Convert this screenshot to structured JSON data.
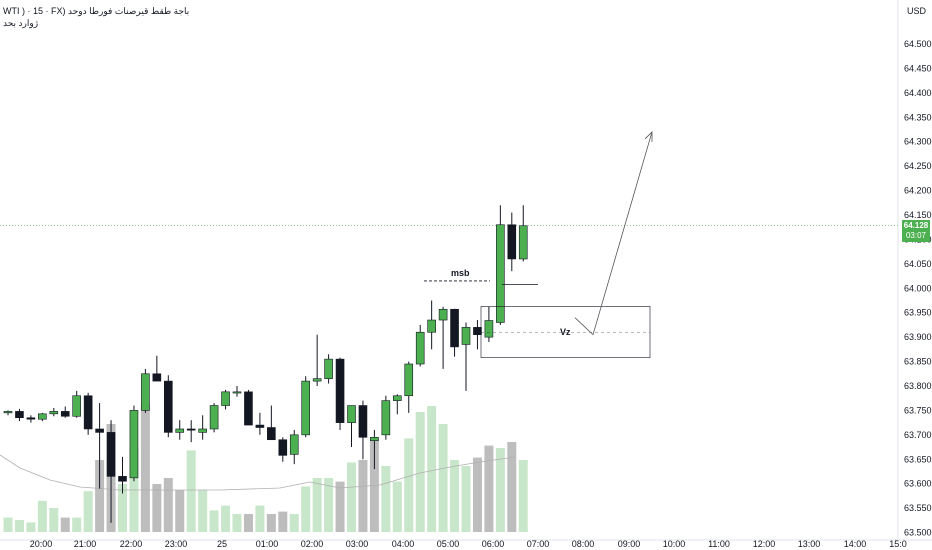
{
  "header": {
    "symbol_line": "WTI ) · 15 · FX) باجة طقط قيرصنات فورطا دوحد",
    "sub_line": "ژوارد بحد",
    "currency": "USD"
  },
  "last_price": {
    "value": "64.128",
    "countdown": "03:07"
  },
  "colors": {
    "up": "#4caf50",
    "down": "#131722",
    "vol_up": "#c8e6c9",
    "vol_down": "#bdbdbd",
    "grid_line": "#4caf50"
  },
  "chart_data": {
    "type": "candlestick",
    "y_axis": {
      "ticks": [
        "64.500",
        "64.450",
        "64.400",
        "64.350",
        "64.300",
        "64.250",
        "64.200",
        "64.150",
        "64.100",
        "64.050",
        "64.000",
        "63.950",
        "63.900",
        "63.850",
        "63.800",
        "63.750",
        "63.700",
        "63.650",
        "63.600",
        "63.550",
        "63.500"
      ],
      "range": [
        63.495,
        64.545
      ]
    },
    "x_axis": {
      "ticks": [
        "20:00",
        "21:00",
        "22:00",
        "23:00",
        "25",
        "01:00",
        "02:00",
        "03:00",
        "04:00",
        "05:00",
        "06:00",
        "07:00",
        "08:00",
        "09:00",
        "10:00",
        "11:00",
        "12:00",
        "13:00",
        "14:00",
        "15:0"
      ]
    },
    "candles": [
      {
        "o": 63.745,
        "h": 63.75,
        "l": 63.74,
        "c": 63.748
      },
      {
        "o": 63.748,
        "h": 63.753,
        "l": 63.728,
        "c": 63.735
      },
      {
        "o": 63.735,
        "h": 63.74,
        "l": 63.725,
        "c": 63.732
      },
      {
        "o": 63.732,
        "h": 63.745,
        "l": 63.728,
        "c": 63.743
      },
      {
        "o": 63.743,
        "h": 63.755,
        "l": 63.738,
        "c": 63.748
      },
      {
        "o": 63.748,
        "h": 63.758,
        "l": 63.735,
        "c": 63.738
      },
      {
        "o": 63.738,
        "h": 63.79,
        "l": 63.735,
        "c": 63.78
      },
      {
        "o": 63.78,
        "h": 63.786,
        "l": 63.7,
        "c": 63.712
      },
      {
        "o": 63.712,
        "h": 63.765,
        "l": 63.59,
        "c": 63.705
      },
      {
        "o": 63.705,
        "h": 63.73,
        "l": 63.52,
        "c": 63.615
      },
      {
        "o": 63.615,
        "h": 63.655,
        "l": 63.58,
        "c": 63.605
      },
      {
        "o": 63.612,
        "h": 63.76,
        "l": 63.605,
        "c": 63.75
      },
      {
        "o": 63.75,
        "h": 63.835,
        "l": 63.745,
        "c": 63.825
      },
      {
        "o": 63.825,
        "h": 63.862,
        "l": 63.81,
        "c": 63.81
      },
      {
        "o": 63.81,
        "h": 63.822,
        "l": 63.695,
        "c": 63.705
      },
      {
        "o": 63.705,
        "h": 63.73,
        "l": 63.69,
        "c": 63.712
      },
      {
        "o": 63.712,
        "h": 63.73,
        "l": 63.685,
        "c": 63.71
      },
      {
        "o": 63.705,
        "h": 63.74,
        "l": 63.69,
        "c": 63.712
      },
      {
        "o": 63.712,
        "h": 63.765,
        "l": 63.705,
        "c": 63.76
      },
      {
        "o": 63.76,
        "h": 63.792,
        "l": 63.752,
        "c": 63.788
      },
      {
        "o": 63.788,
        "h": 63.8,
        "l": 63.778,
        "c": 63.788
      },
      {
        "o": 63.788,
        "h": 63.792,
        "l": 63.72,
        "c": 63.72
      },
      {
        "o": 63.72,
        "h": 63.745,
        "l": 63.7,
        "c": 63.715
      },
      {
        "o": 63.715,
        "h": 63.76,
        "l": 63.69,
        "c": 63.69
      },
      {
        "o": 63.69,
        "h": 63.695,
        "l": 63.645,
        "c": 63.658
      },
      {
        "o": 63.66,
        "h": 63.71,
        "l": 63.64,
        "c": 63.7
      },
      {
        "o": 63.7,
        "h": 63.82,
        "l": 63.695,
        "c": 63.81
      },
      {
        "o": 63.81,
        "h": 63.905,
        "l": 63.8,
        "c": 63.815
      },
      {
        "o": 63.815,
        "h": 63.865,
        "l": 63.805,
        "c": 63.855
      },
      {
        "o": 63.855,
        "h": 63.858,
        "l": 63.71,
        "c": 63.725
      },
      {
        "o": 63.725,
        "h": 63.76,
        "l": 63.675,
        "c": 63.76
      },
      {
        "o": 63.76,
        "h": 63.77,
        "l": 63.65,
        "c": 63.695
      },
      {
        "o": 63.688,
        "h": 63.71,
        "l": 63.63,
        "c": 63.695
      },
      {
        "o": 63.7,
        "h": 63.78,
        "l": 63.69,
        "c": 63.77
      },
      {
        "o": 63.77,
        "h": 63.783,
        "l": 63.742,
        "c": 63.78
      },
      {
        "o": 63.78,
        "h": 63.85,
        "l": 63.745,
        "c": 63.845
      },
      {
        "o": 63.845,
        "h": 63.925,
        "l": 63.84,
        "c": 63.91
      },
      {
        "o": 63.91,
        "h": 63.975,
        "l": 63.875,
        "c": 63.935
      },
      {
        "o": 63.935,
        "h": 63.962,
        "l": 63.835,
        "c": 63.957
      },
      {
        "o": 63.957,
        "h": 63.958,
        "l": 63.86,
        "c": 63.88
      },
      {
        "o": 63.885,
        "h": 63.93,
        "l": 63.79,
        "c": 63.92
      },
      {
        "o": 63.92,
        "h": 63.935,
        "l": 63.875,
        "c": 63.905
      },
      {
        "o": 63.9,
        "h": 63.962,
        "l": 63.89,
        "c": 63.934
      },
      {
        "o": 63.93,
        "h": 64.17,
        "l": 63.925,
        "c": 64.13
      },
      {
        "o": 64.13,
        "h": 64.155,
        "l": 64.035,
        "c": 64.06
      },
      {
        "o": 64.06,
        "h": 64.17,
        "l": 64.055,
        "c": 64.128
      }
    ],
    "volume": [
      {
        "v": 12,
        "up": true
      },
      {
        "v": 10,
        "up": true
      },
      {
        "v": 8,
        "up": true
      },
      {
        "v": 26,
        "up": true
      },
      {
        "v": 20,
        "up": true
      },
      {
        "v": 12,
        "up": false
      },
      {
        "v": 12,
        "up": true
      },
      {
        "v": 34,
        "up": true
      },
      {
        "v": 60,
        "up": false
      },
      {
        "v": 90,
        "up": false
      },
      {
        "v": 40,
        "up": true
      },
      {
        "v": 70,
        "up": true
      },
      {
        "v": 107,
        "up": false
      },
      {
        "v": 40,
        "up": false
      },
      {
        "v": 45,
        "up": false
      },
      {
        "v": 35,
        "up": false
      },
      {
        "v": 68,
        "up": true
      },
      {
        "v": 35,
        "up": true
      },
      {
        "v": 18,
        "up": true
      },
      {
        "v": 22,
        "up": true
      },
      {
        "v": 15,
        "up": true
      },
      {
        "v": 15,
        "up": false
      },
      {
        "v": 22,
        "up": true
      },
      {
        "v": 15,
        "up": false
      },
      {
        "v": 17,
        "up": false
      },
      {
        "v": 15,
        "up": true
      },
      {
        "v": 38,
        "up": true
      },
      {
        "v": 45,
        "up": true
      },
      {
        "v": 45,
        "up": true
      },
      {
        "v": 42,
        "up": false
      },
      {
        "v": 58,
        "up": true
      },
      {
        "v": 60,
        "up": false
      },
      {
        "v": 78,
        "up": false
      },
      {
        "v": 55,
        "up": true
      },
      {
        "v": 42,
        "up": true
      },
      {
        "v": 78,
        "up": true
      },
      {
        "v": 100,
        "up": true
      },
      {
        "v": 105,
        "up": true
      },
      {
        "v": 90,
        "up": true
      },
      {
        "v": 60,
        "up": true
      },
      {
        "v": 55,
        "up": true
      },
      {
        "v": 62,
        "up": false
      },
      {
        "v": 72,
        "up": false
      },
      {
        "v": 70,
        "up": true
      },
      {
        "v": 75,
        "up": false
      },
      {
        "v": 60,
        "up": true
      }
    ],
    "annotations": {
      "msb": {
        "label": "msb",
        "level": 64.015
      },
      "zone": {
        "label": "Vz",
        "top": 63.963,
        "bottom": 63.858,
        "mid": 63.91
      },
      "target_line": {
        "level": 64.008
      },
      "projection": {
        "from": 63.905,
        "to": 64.32
      },
      "last_price_line": 64.128
    },
    "grid": false
  }
}
